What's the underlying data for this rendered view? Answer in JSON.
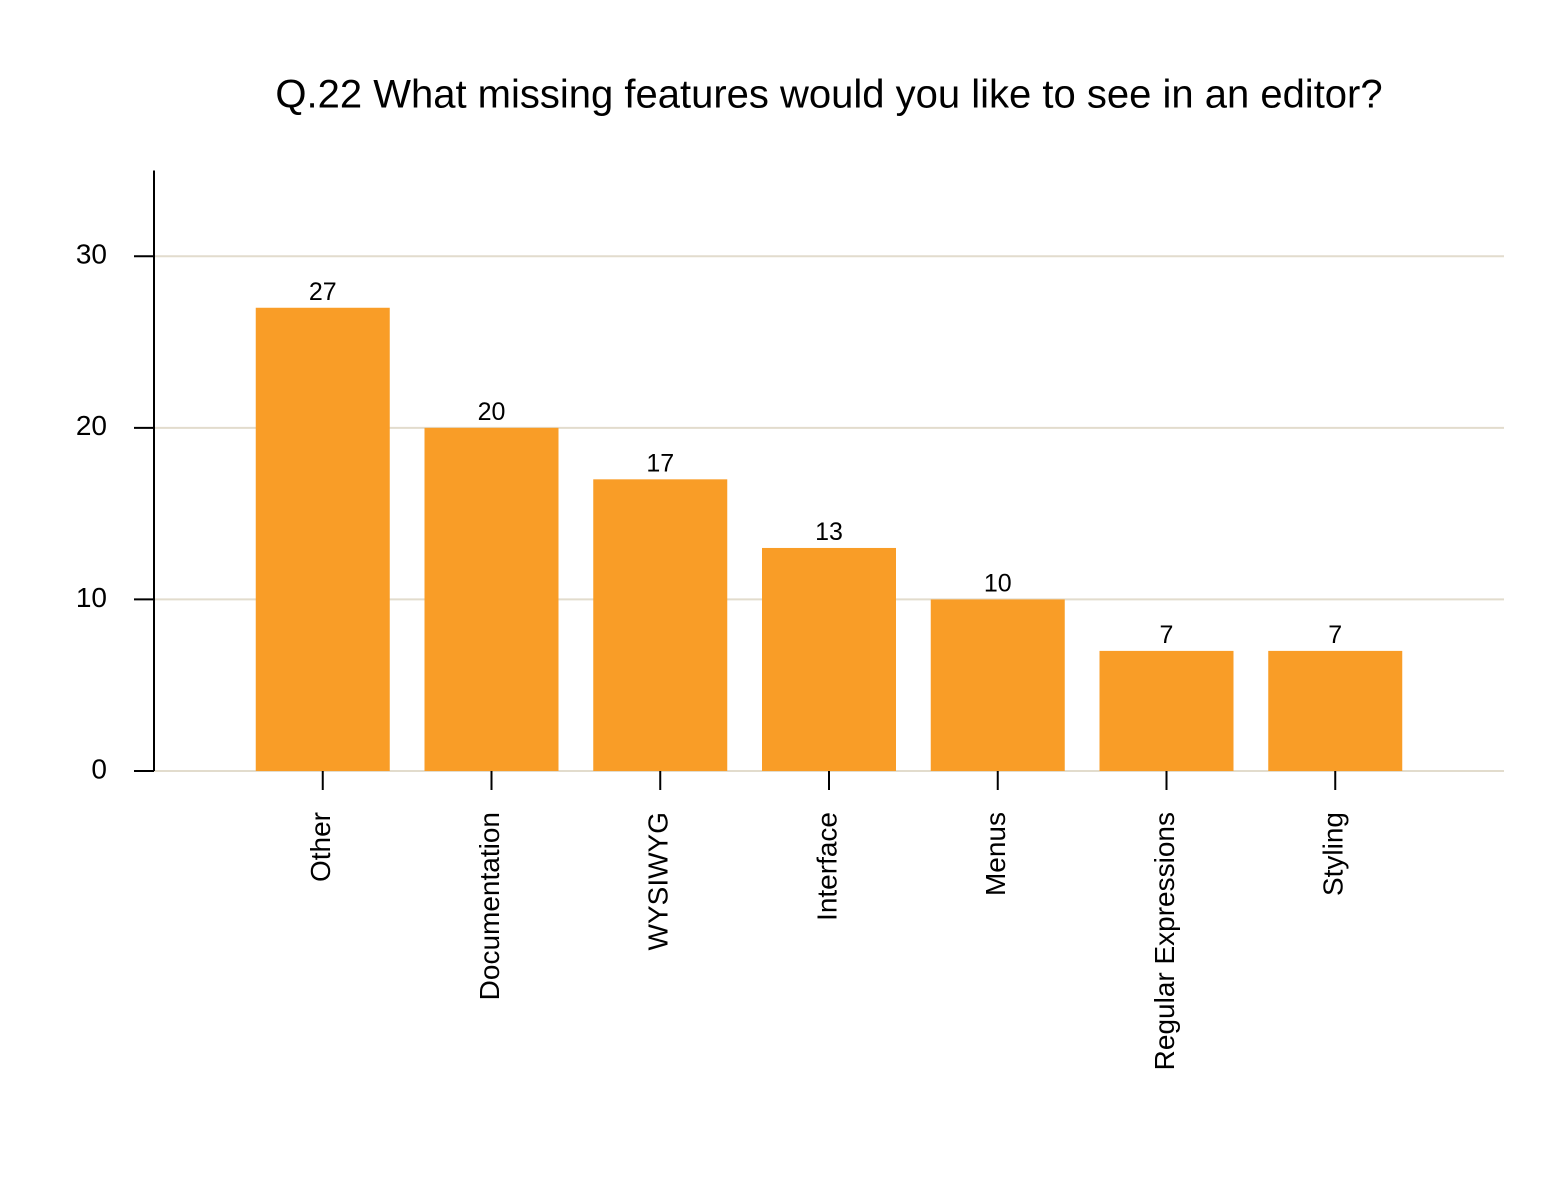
{
  "chart_data": {
    "type": "bar",
    "title": "Q.22 What missing features would you like to see in an editor?",
    "categories": [
      "Other",
      "Documentation",
      "WYSIWYG",
      "Interface",
      "Menus",
      "Regular Expressions",
      "Styling"
    ],
    "values": [
      27,
      20,
      17,
      13,
      10,
      7,
      7
    ],
    "color": "#f99d27",
    "ylim": [
      0,
      35
    ],
    "yticks": [
      0,
      10,
      20,
      30
    ],
    "grid": true
  }
}
